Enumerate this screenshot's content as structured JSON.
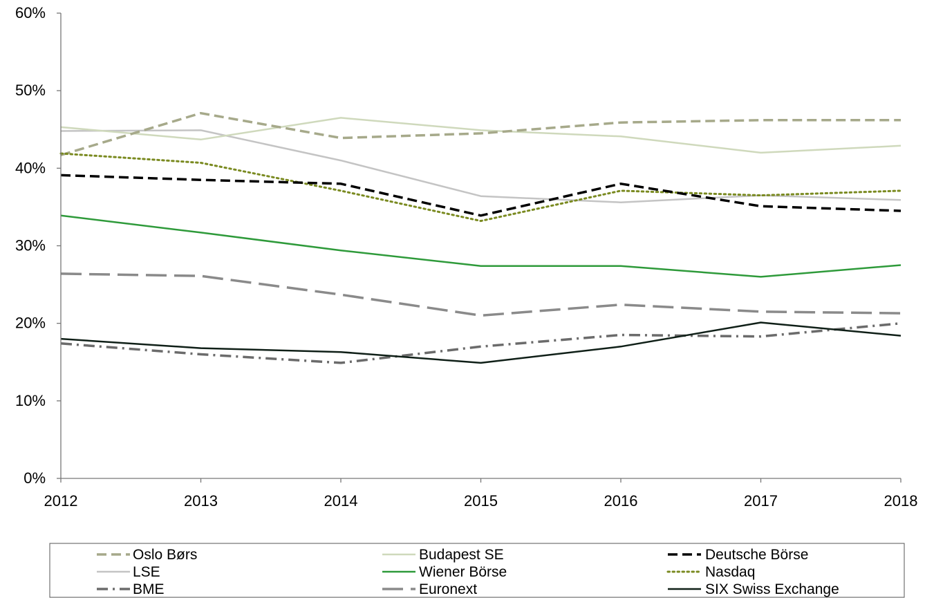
{
  "chart_data": {
    "type": "line",
    "title": "",
    "xlabel": "",
    "ylabel": "",
    "x": [
      "2012",
      "2013",
      "2014",
      "2015",
      "2016",
      "2017",
      "2018"
    ],
    "ylim": [
      0,
      60
    ],
    "yticks": [
      0,
      10,
      20,
      30,
      40,
      50,
      60
    ],
    "ytick_labels": [
      "0%",
      "10%",
      "20%",
      "30%",
      "40%",
      "50%",
      "60%"
    ],
    "grid": false,
    "legend_position": "bottom",
    "series": [
      {
        "name": "Oslo Børs",
        "color": "#a6a98a",
        "style": "dashed",
        "values": [
          41.7,
          47.1,
          43.9,
          44.5,
          45.9,
          46.2,
          46.2
        ]
      },
      {
        "name": "Budapest SE",
        "color": "#cfd9bc",
        "style": "solid",
        "values": [
          45.3,
          43.7,
          46.5,
          44.9,
          44.1,
          42.0,
          42.9
        ]
      },
      {
        "name": "Deutsche Börse",
        "color": "#000000",
        "style": "dashed",
        "values": [
          39.1,
          38.5,
          38.0,
          33.9,
          38.0,
          35.1,
          34.5
        ]
      },
      {
        "name": "LSE",
        "color": "#c4c4c4",
        "style": "solid",
        "values": [
          44.8,
          44.9,
          41.0,
          36.4,
          35.6,
          36.5,
          35.9
        ]
      },
      {
        "name": "Wiener Börse",
        "color": "#2e9a3a",
        "style": "solid",
        "values": [
          33.9,
          31.7,
          29.4,
          27.4,
          27.4,
          26.0,
          27.5
        ]
      },
      {
        "name": "Nasdaq",
        "color": "#7a8a20",
        "style": "dotted",
        "values": [
          41.9,
          40.7,
          37.1,
          33.2,
          37.1,
          36.5,
          37.1
        ]
      },
      {
        "name": "BME",
        "color": "#6b6b6b",
        "style": "dashdot",
        "values": [
          17.4,
          16.0,
          14.9,
          17.0,
          18.5,
          18.3,
          20.0
        ]
      },
      {
        "name": "Euronext",
        "color": "#8a8a8a",
        "style": "longdash",
        "values": [
          26.4,
          26.1,
          23.7,
          21.0,
          22.4,
          21.5,
          21.3
        ]
      },
      {
        "name": "SIX Swiss Exchange",
        "color": "#0f1f17",
        "style": "solid",
        "values": [
          18.0,
          16.8,
          16.3,
          14.9,
          17.0,
          20.1,
          18.4
        ]
      }
    ]
  }
}
